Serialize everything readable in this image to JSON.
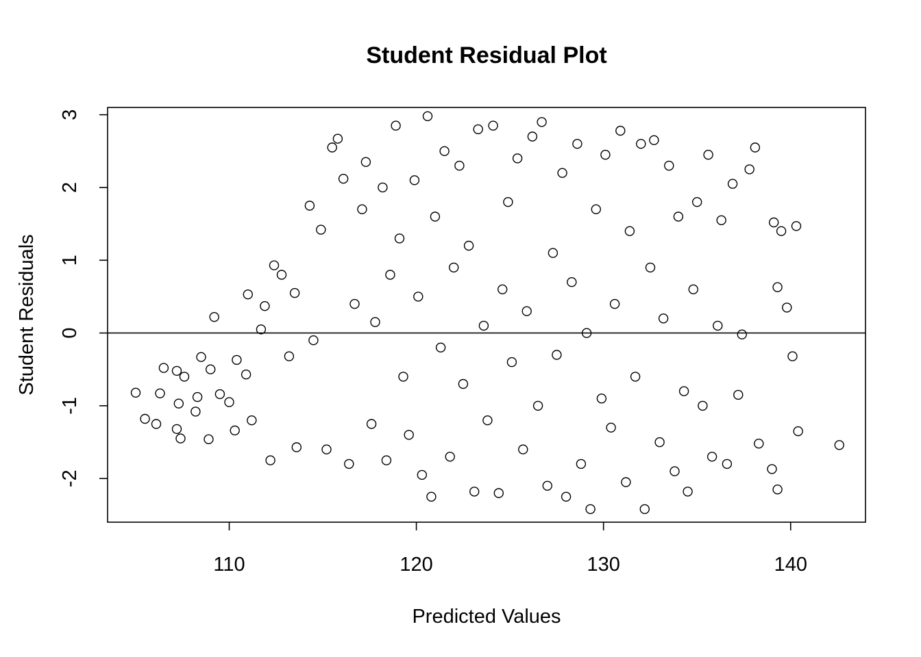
{
  "chart_data": {
    "type": "scatter",
    "title": "Student Residual Plot",
    "xlabel": "Predicted Values",
    "ylabel": "Student Residuals",
    "xlim": [
      103.5,
      144.0
    ],
    "ylim": [
      -2.6,
      3.1
    ],
    "xticks": [
      110,
      120,
      130,
      140
    ],
    "yticks": [
      -2,
      -1,
      0,
      1,
      2,
      3
    ],
    "xtick_labels": [
      "110",
      "120",
      "130",
      "140"
    ],
    "ytick_labels": [
      "-2",
      "-1",
      "0",
      "1",
      "2",
      "3"
    ],
    "reference_line_y": 0,
    "grid": false,
    "marker": "open-circle",
    "sample_points": [
      [
        105.0,
        -0.82
      ],
      [
        105.5,
        -1.18
      ],
      [
        106.1,
        -1.25
      ],
      [
        106.3,
        -0.83
      ],
      [
        106.5,
        -0.48
      ],
      [
        107.2,
        -0.52
      ],
      [
        107.3,
        -0.97
      ],
      [
        107.4,
        -1.45
      ],
      [
        107.2,
        -1.32
      ],
      [
        107.6,
        -0.6
      ],
      [
        108.2,
        -1.08
      ],
      [
        108.3,
        -0.88
      ],
      [
        108.5,
        -0.33
      ],
      [
        108.9,
        -1.46
      ],
      [
        109.0,
        -0.5
      ],
      [
        109.2,
        0.22
      ],
      [
        109.5,
        -0.84
      ],
      [
        110.0,
        -0.95
      ],
      [
        110.3,
        -1.34
      ],
      [
        110.4,
        -0.37
      ],
      [
        110.9,
        -0.57
      ],
      [
        111.0,
        0.53
      ],
      [
        111.2,
        -1.2
      ],
      [
        111.7,
        0.05
      ],
      [
        111.9,
        0.37
      ],
      [
        112.2,
        -1.75
      ],
      [
        112.4,
        0.93
      ],
      [
        112.8,
        0.8
      ],
      [
        113.2,
        -0.32
      ],
      [
        113.5,
        0.55
      ],
      [
        113.6,
        -1.57
      ],
      [
        114.3,
        1.75
      ],
      [
        114.5,
        -0.1
      ],
      [
        114.9,
        1.42
      ],
      [
        115.2,
        -1.6
      ],
      [
        115.5,
        2.55
      ],
      [
        115.8,
        2.67
      ],
      [
        116.1,
        2.12
      ],
      [
        116.4,
        -1.8
      ],
      [
        116.7,
        0.4
      ],
      [
        117.1,
        1.7
      ],
      [
        117.3,
        2.35
      ],
      [
        117.6,
        -1.25
      ],
      [
        117.8,
        0.15
      ],
      [
        118.2,
        2.0
      ],
      [
        118.4,
        -1.75
      ],
      [
        118.6,
        0.8
      ],
      [
        118.9,
        2.85
      ],
      [
        119.1,
        1.3
      ],
      [
        119.3,
        -0.6
      ],
      [
        119.6,
        -1.4
      ],
      [
        119.9,
        2.1
      ],
      [
        120.1,
        0.5
      ],
      [
        120.3,
        -1.95
      ],
      [
        120.6,
        2.98
      ],
      [
        120.8,
        -2.25
      ],
      [
        121.0,
        1.6
      ],
      [
        121.3,
        -0.2
      ],
      [
        121.5,
        2.5
      ],
      [
        121.8,
        -1.7
      ],
      [
        122.0,
        0.9
      ],
      [
        122.3,
        2.3
      ],
      [
        122.5,
        -0.7
      ],
      [
        122.8,
        1.2
      ],
      [
        123.1,
        -2.18
      ],
      [
        123.3,
        2.8
      ],
      [
        123.6,
        0.1
      ],
      [
        123.8,
        -1.2
      ],
      [
        124.1,
        2.85
      ],
      [
        124.4,
        -2.2
      ],
      [
        124.6,
        0.6
      ],
      [
        124.9,
        1.8
      ],
      [
        125.1,
        -0.4
      ],
      [
        125.4,
        2.4
      ],
      [
        125.7,
        -1.6
      ],
      [
        125.9,
        0.3
      ],
      [
        126.2,
        2.7
      ],
      [
        126.5,
        -1.0
      ],
      [
        126.7,
        2.9
      ],
      [
        127.0,
        -2.1
      ],
      [
        127.3,
        1.1
      ],
      [
        127.5,
        -0.3
      ],
      [
        127.8,
        2.2
      ],
      [
        128.0,
        -2.25
      ],
      [
        128.3,
        0.7
      ],
      [
        128.6,
        2.6
      ],
      [
        128.8,
        -1.8
      ],
      [
        129.1,
        0.0
      ],
      [
        129.3,
        -2.42
      ],
      [
        129.6,
        1.7
      ],
      [
        129.9,
        -0.9
      ],
      [
        130.1,
        2.45
      ],
      [
        130.4,
        -1.3
      ],
      [
        130.6,
        0.4
      ],
      [
        130.9,
        2.78
      ],
      [
        131.2,
        -2.05
      ],
      [
        131.4,
        1.4
      ],
      [
        131.7,
        -0.6
      ],
      [
        132.0,
        2.6
      ],
      [
        132.2,
        -2.42
      ],
      [
        132.5,
        0.9
      ],
      [
        132.7,
        2.65
      ],
      [
        133.0,
        -1.5
      ],
      [
        133.2,
        0.2
      ],
      [
        133.5,
        2.3
      ],
      [
        133.8,
        -1.9
      ],
      [
        134.0,
        1.6
      ],
      [
        134.3,
        -0.8
      ],
      [
        134.5,
        -2.18
      ],
      [
        134.8,
        0.6
      ],
      [
        135.0,
        1.8
      ],
      [
        135.3,
        -1.0
      ],
      [
        135.6,
        2.45
      ],
      [
        135.8,
        -1.7
      ],
      [
        136.1,
        0.1
      ],
      [
        136.3,
        1.55
      ],
      [
        136.6,
        -1.8
      ],
      [
        136.9,
        2.05
      ],
      [
        137.2,
        -0.85
      ],
      [
        137.4,
        -0.02
      ],
      [
        137.8,
        2.25
      ],
      [
        138.1,
        2.55
      ],
      [
        138.3,
        -1.52
      ],
      [
        139.0,
        -1.87
      ],
      [
        139.1,
        1.52
      ],
      [
        139.3,
        0.63
      ],
      [
        139.3,
        -2.15
      ],
      [
        139.5,
        1.4
      ],
      [
        139.8,
        0.35
      ],
      [
        140.1,
        -0.32
      ],
      [
        140.3,
        1.47
      ],
      [
        140.4,
        -1.35
      ],
      [
        142.6,
        -1.54
      ]
    ]
  }
}
